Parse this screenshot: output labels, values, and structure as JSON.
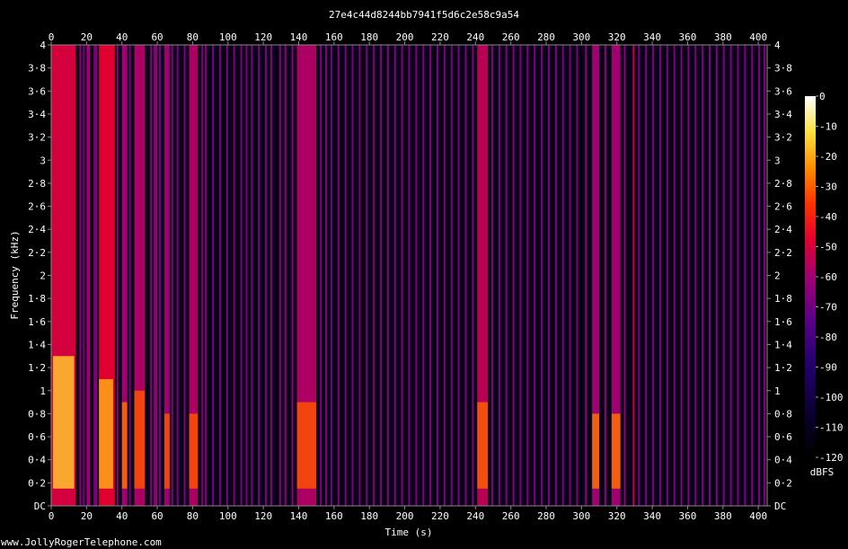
{
  "chart_data": {
    "type": "heatmap",
    "title": "27e4c44d8244bb7941f5d6c2e58c9a54",
    "xlabel": "Time (s)",
    "ylabel": "Frequency (kHz)",
    "colorbar_label": "dBFS",
    "watermark": "www.JollyRogerTelephone.com",
    "xlim": [
      0,
      405
    ],
    "ylim": [
      0,
      4
    ],
    "x_ticks": [
      0,
      20,
      40,
      60,
      80,
      100,
      120,
      140,
      160,
      180,
      200,
      220,
      240,
      260,
      280,
      300,
      320,
      340,
      360,
      380,
      400
    ],
    "y_ticks": [
      {
        "value": 0,
        "label": "DC"
      },
      {
        "value": 0.2,
        "label": "0·2"
      },
      {
        "value": 0.4,
        "label": "0·4"
      },
      {
        "value": 0.6,
        "label": "0·6"
      },
      {
        "value": 0.8,
        "label": "0·8"
      },
      {
        "value": 1,
        "label": "1"
      },
      {
        "value": 1.2,
        "label": "1·2"
      },
      {
        "value": 1.4,
        "label": "1·4"
      },
      {
        "value": 1.6,
        "label": "1·6"
      },
      {
        "value": 1.8,
        "label": "1·8"
      },
      {
        "value": 2,
        "label": "2"
      },
      {
        "value": 2.2,
        "label": "2·2"
      },
      {
        "value": 2.4,
        "label": "2·4"
      },
      {
        "value": 2.6,
        "label": "2·6"
      },
      {
        "value": 2.8,
        "label": "2·8"
      },
      {
        "value": 3,
        "label": "3"
      },
      {
        "value": 3.2,
        "label": "3·2"
      },
      {
        "value": 3.4,
        "label": "3·4"
      },
      {
        "value": 3.6,
        "label": "3·6"
      },
      {
        "value": 3.8,
        "label": "3·8"
      },
      {
        "value": 4,
        "label": "4"
      }
    ],
    "colorbar_ticks": [
      0,
      -10,
      -20,
      -30,
      -40,
      -50,
      -60,
      -70,
      -80,
      -90,
      -100,
      -110,
      -120
    ],
    "colorbar_range": [
      -120,
      0
    ],
    "background_level": -115,
    "colors": {
      "low": "#000000",
      "mid1": "#20006a",
      "mid2": "#8a0090",
      "mid3": "#e0003c",
      "high1": "#ff8c00",
      "high2": "#ffff60",
      "top": "#ffffff"
    },
    "series": [
      {
        "start": 0,
        "end": 14,
        "level": -62
      },
      {
        "start": 16,
        "end": 17,
        "level": -72
      },
      {
        "start": 18,
        "end": 19,
        "level": -75
      },
      {
        "start": 20,
        "end": 22,
        "level": -70
      },
      {
        "start": 24,
        "end": 26,
        "level": -74
      },
      {
        "start": 27,
        "end": 36,
        "level": -60
      },
      {
        "start": 37,
        "end": 38,
        "level": -72
      },
      {
        "start": 40,
        "end": 43,
        "level": -70
      },
      {
        "start": 44,
        "end": 45,
        "level": -75
      },
      {
        "start": 47,
        "end": 53,
        "level": -68
      },
      {
        "start": 56,
        "end": 57,
        "level": -74
      },
      {
        "start": 58,
        "end": 60,
        "level": -72
      },
      {
        "start": 61,
        "end": 62,
        "level": -76
      },
      {
        "start": 64,
        "end": 67,
        "level": -70
      },
      {
        "start": 68,
        "end": 69,
        "level": -74
      },
      {
        "start": 71,
        "end": 72,
        "level": -75
      },
      {
        "start": 75,
        "end": 76,
        "level": -74
      },
      {
        "start": 78,
        "end": 83,
        "level": -68
      },
      {
        "start": 85,
        "end": 86,
        "level": -74
      },
      {
        "start": 87,
        "end": 88,
        "level": -72
      },
      {
        "start": 91,
        "end": 92,
        "level": -75
      },
      {
        "start": 95,
        "end": 96,
        "level": -74
      },
      {
        "start": 99,
        "end": 100,
        "level": -74
      },
      {
        "start": 103,
        "end": 104,
        "level": -74
      },
      {
        "start": 107,
        "end": 108,
        "level": -74
      },
      {
        "start": 110,
        "end": 111,
        "level": -74
      },
      {
        "start": 113,
        "end": 114,
        "level": -74
      },
      {
        "start": 117,
        "end": 118,
        "level": -74
      },
      {
        "start": 121,
        "end": 122,
        "level": -74
      },
      {
        "start": 124,
        "end": 125,
        "level": -74
      },
      {
        "start": 129,
        "end": 130,
        "level": -74
      },
      {
        "start": 132,
        "end": 133,
        "level": -72
      },
      {
        "start": 136,
        "end": 137,
        "level": -72
      },
      {
        "start": 139,
        "end": 150,
        "level": -68
      },
      {
        "start": 152,
        "end": 153,
        "level": -74
      },
      {
        "start": 155,
        "end": 156,
        "level": -74
      },
      {
        "start": 158,
        "end": 159,
        "level": -75
      },
      {
        "start": 162,
        "end": 163,
        "level": -74
      },
      {
        "start": 166,
        "end": 167,
        "level": -74
      },
      {
        "start": 170,
        "end": 171,
        "level": -74
      },
      {
        "start": 174,
        "end": 175,
        "level": -74
      },
      {
        "start": 178,
        "end": 179,
        "level": -74
      },
      {
        "start": 182,
        "end": 183,
        "level": -74
      },
      {
        "start": 186,
        "end": 187,
        "level": -74
      },
      {
        "start": 190,
        "end": 191,
        "level": -74
      },
      {
        "start": 194,
        "end": 195,
        "level": -74
      },
      {
        "start": 198,
        "end": 199,
        "level": -74
      },
      {
        "start": 202,
        "end": 203,
        "level": -74
      },
      {
        "start": 206,
        "end": 207,
        "level": -74
      },
      {
        "start": 210,
        "end": 211,
        "level": -74
      },
      {
        "start": 214,
        "end": 215,
        "level": -74
      },
      {
        "start": 218,
        "end": 219,
        "level": -74
      },
      {
        "start": 222,
        "end": 223,
        "level": -74
      },
      {
        "start": 226,
        "end": 227,
        "level": -74
      },
      {
        "start": 230,
        "end": 231,
        "level": -74
      },
      {
        "start": 234,
        "end": 235,
        "level": -74
      },
      {
        "start": 238,
        "end": 239,
        "level": -74
      },
      {
        "start": 241,
        "end": 247,
        "level": -66
      },
      {
        "start": 249,
        "end": 250,
        "level": -74
      },
      {
        "start": 253,
        "end": 254,
        "level": -74
      },
      {
        "start": 257,
        "end": 258,
        "level": -74
      },
      {
        "start": 261,
        "end": 262,
        "level": -74
      },
      {
        "start": 265,
        "end": 266,
        "level": -74
      },
      {
        "start": 269,
        "end": 270,
        "level": -74
      },
      {
        "start": 273,
        "end": 274,
        "level": -74
      },
      {
        "start": 277,
        "end": 278,
        "level": -74
      },
      {
        "start": 281,
        "end": 282,
        "level": -74
      },
      {
        "start": 285,
        "end": 286,
        "level": -74
      },
      {
        "start": 289,
        "end": 290,
        "level": -74
      },
      {
        "start": 293,
        "end": 294,
        "level": -74
      },
      {
        "start": 297,
        "end": 298,
        "level": -74
      },
      {
        "start": 302,
        "end": 303,
        "level": -72
      },
      {
        "start": 306,
        "end": 310,
        "level": -70
      },
      {
        "start": 313,
        "end": 314,
        "level": -72
      },
      {
        "start": 317,
        "end": 322,
        "level": -70
      },
      {
        "start": 324,
        "end": 325,
        "level": -72
      },
      {
        "start": 329,
        "end": 330,
        "level": -62
      },
      {
        "start": 332,
        "end": 333,
        "level": -74
      },
      {
        "start": 336,
        "end": 337,
        "level": -74
      },
      {
        "start": 340,
        "end": 341,
        "level": -74
      },
      {
        "start": 344,
        "end": 345,
        "level": -74
      },
      {
        "start": 348,
        "end": 349,
        "level": -74
      },
      {
        "start": 352,
        "end": 353,
        "level": -74
      },
      {
        "start": 356,
        "end": 357,
        "level": -74
      },
      {
        "start": 360,
        "end": 361,
        "level": -74
      },
      {
        "start": 364,
        "end": 365,
        "level": -74
      },
      {
        "start": 368,
        "end": 369,
        "level": -74
      },
      {
        "start": 372,
        "end": 373,
        "level": -74
      },
      {
        "start": 376,
        "end": 377,
        "level": -74
      },
      {
        "start": 380,
        "end": 381,
        "level": -74
      },
      {
        "start": 384,
        "end": 385,
        "level": -74
      },
      {
        "start": 388,
        "end": 389,
        "level": -74
      },
      {
        "start": 392,
        "end": 393,
        "level": -74
      },
      {
        "start": 396,
        "end": 397,
        "level": -74
      },
      {
        "start": 400,
        "end": 401,
        "level": -74
      },
      {
        "start": 403,
        "end": 404,
        "level": -74
      }
    ],
    "low_freq_peaks": [
      {
        "start": 1,
        "end": 13,
        "fmax": 1.3,
        "level": -20
      },
      {
        "start": 27,
        "end": 35,
        "fmax": 1.1,
        "level": -25
      },
      {
        "start": 40,
        "end": 43,
        "fmax": 0.9,
        "level": -35
      },
      {
        "start": 47,
        "end": 53,
        "fmax": 1.0,
        "level": -40
      },
      {
        "start": 64,
        "end": 67,
        "fmax": 0.8,
        "level": -40
      },
      {
        "start": 78,
        "end": 83,
        "fmax": 0.8,
        "level": -40
      },
      {
        "start": 139,
        "end": 150,
        "fmax": 0.9,
        "level": -40
      },
      {
        "start": 241,
        "end": 247,
        "fmax": 0.9,
        "level": -38
      },
      {
        "start": 306,
        "end": 310,
        "fmax": 0.8,
        "level": -35
      },
      {
        "start": 317,
        "end": 322,
        "fmax": 0.8,
        "level": -35
      }
    ]
  }
}
